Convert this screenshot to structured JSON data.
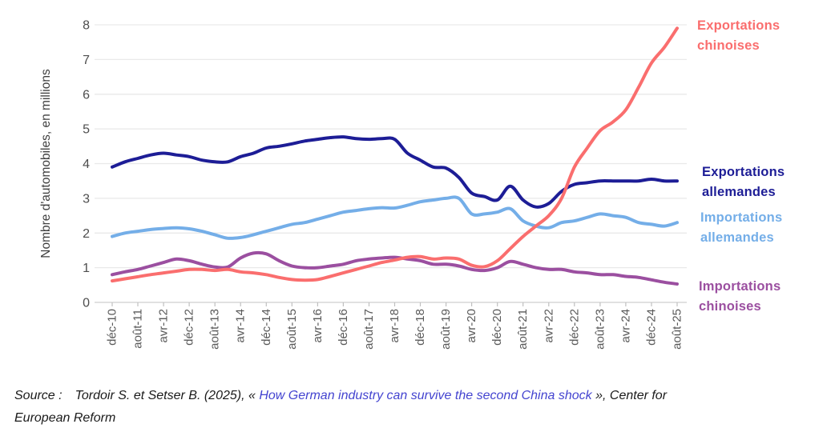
{
  "chart_data": {
    "type": "line",
    "title": "",
    "xlabel": "",
    "ylabel": "Nombre d'automobiles, en millions",
    "ylim": [
      0,
      8
    ],
    "y_ticks": [
      0,
      1,
      2,
      3,
      4,
      5,
      6,
      7,
      8
    ],
    "grid": "horizontal",
    "legend_position": "right",
    "x": [
      "déc-10",
      "avr-11",
      "août-11",
      "déc-11",
      "avr-12",
      "août-12",
      "déc-12",
      "avr-13",
      "août-13",
      "déc-13",
      "avr-14",
      "août-14",
      "déc-14",
      "avr-15",
      "août-15",
      "déc-15",
      "avr-16",
      "août-16",
      "déc-16",
      "avr-17",
      "août-17",
      "déc-17",
      "avr-18",
      "août-18",
      "déc-18",
      "avr-19",
      "août-19",
      "déc-19",
      "avr-20",
      "août-20",
      "déc-20",
      "avr-21",
      "août-21",
      "déc-21",
      "avr-22",
      "août-22",
      "déc-22",
      "avr-23",
      "août-23",
      "déc-23",
      "avr-24",
      "août-24",
      "déc-24",
      "avr-25",
      "août-25"
    ],
    "x_tick_labels": [
      "déc-10",
      "août-11",
      "avr-12",
      "déc-12",
      "août-13",
      "avr-14",
      "déc-14",
      "août-15",
      "avr-16",
      "déc-16",
      "août-17",
      "avr-18",
      "déc-18",
      "août-19",
      "avr-20",
      "déc-20",
      "août-21",
      "avr-22",
      "déc-22",
      "août-23",
      "avr-24",
      "déc-24",
      "août-25"
    ],
    "series": [
      {
        "name": "Exportations allemandes",
        "color": "#1d1d96",
        "values": [
          3.9,
          4.05,
          4.15,
          4.25,
          4.3,
          4.25,
          4.2,
          4.1,
          4.05,
          4.05,
          4.2,
          4.3,
          4.45,
          4.5,
          4.57,
          4.65,
          4.7,
          4.75,
          4.77,
          4.72,
          4.7,
          4.72,
          4.7,
          4.3,
          4.1,
          3.9,
          3.87,
          3.6,
          3.15,
          3.05,
          2.95,
          3.35,
          2.95,
          2.75,
          2.85,
          3.2,
          3.4,
          3.45,
          3.5,
          3.5,
          3.5,
          3.5,
          3.55,
          3.5,
          3.5
        ]
      },
      {
        "name": "Importations allemandes",
        "color": "#74aee8",
        "values": [
          1.9,
          2.0,
          2.05,
          2.1,
          2.13,
          2.15,
          2.12,
          2.05,
          1.95,
          1.85,
          1.87,
          1.95,
          2.05,
          2.15,
          2.25,
          2.3,
          2.4,
          2.5,
          2.6,
          2.65,
          2.7,
          2.73,
          2.72,
          2.8,
          2.9,
          2.95,
          3.0,
          3.0,
          2.55,
          2.55,
          2.6,
          2.7,
          2.35,
          2.2,
          2.15,
          2.3,
          2.35,
          2.45,
          2.55,
          2.5,
          2.45,
          2.3,
          2.25,
          2.2,
          2.3
        ]
      },
      {
        "name": "Importations chinoises",
        "color": "#9b4fa0",
        "values": [
          0.8,
          0.88,
          0.95,
          1.05,
          1.15,
          1.25,
          1.2,
          1.1,
          1.02,
          1.02,
          1.28,
          1.42,
          1.4,
          1.2,
          1.05,
          1.0,
          1.0,
          1.05,
          1.1,
          1.2,
          1.25,
          1.28,
          1.3,
          1.25,
          1.2,
          1.1,
          1.1,
          1.05,
          0.95,
          0.92,
          1.0,
          1.18,
          1.1,
          1.0,
          0.95,
          0.95,
          0.88,
          0.85,
          0.8,
          0.8,
          0.75,
          0.72,
          0.65,
          0.58,
          0.53
        ]
      },
      {
        "name": "Exportations chinoises",
        "color": "#fa6e6e",
        "values": [
          0.62,
          0.68,
          0.74,
          0.8,
          0.85,
          0.9,
          0.95,
          0.95,
          0.92,
          0.95,
          0.88,
          0.85,
          0.8,
          0.72,
          0.66,
          0.64,
          0.66,
          0.75,
          0.85,
          0.95,
          1.05,
          1.15,
          1.22,
          1.3,
          1.32,
          1.25,
          1.28,
          1.25,
          1.07,
          1.03,
          1.2,
          1.55,
          1.9,
          2.2,
          2.5,
          3.0,
          3.9,
          4.45,
          4.95,
          5.2,
          5.55,
          6.2,
          6.9,
          7.35,
          7.9
        ]
      }
    ]
  },
  "legend": {
    "exportations_chinoises": "Exportations chinoises",
    "exportations_allemandes": "Exportations allemandes",
    "importations_allemandes": "Importations allemandes",
    "importations_chinoises": "Importations chinoises"
  },
  "source": {
    "label": "Source :",
    "before_link": "Tordoir S. et Setser B. (2025), « ",
    "link_text": "How German industry can survive the second China shock",
    "after_link": " », Center for",
    "line2": "European Reform"
  }
}
